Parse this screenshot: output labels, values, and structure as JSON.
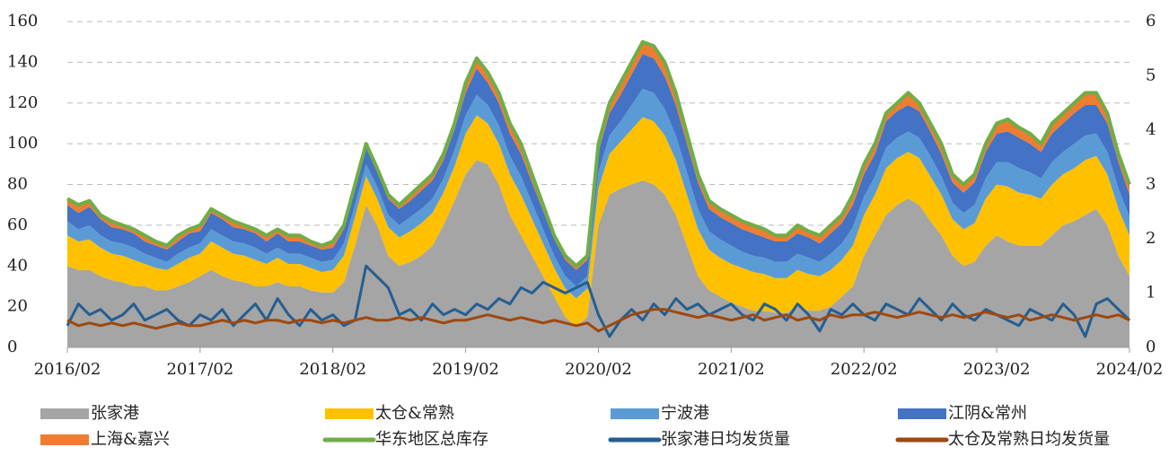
{
  "chart_data": {
    "type": "stacked-area-line",
    "x": [
      "2016/02",
      "2016/03",
      "2016/04",
      "2016/05",
      "2016/06",
      "2016/07",
      "2016/08",
      "2016/09",
      "2016/10",
      "2016/11",
      "2016/12",
      "2017/01",
      "2017/02",
      "2017/03",
      "2017/04",
      "2017/05",
      "2017/06",
      "2017/07",
      "2017/08",
      "2017/09",
      "2017/10",
      "2017/11",
      "2017/12",
      "2018/01",
      "2018/02",
      "2018/03",
      "2018/04",
      "2018/05",
      "2018/06",
      "2018/07",
      "2018/08",
      "2018/09",
      "2018/10",
      "2018/11",
      "2018/12",
      "2019/01",
      "2019/02",
      "2019/03",
      "2019/04",
      "2019/05",
      "2019/06",
      "2019/07",
      "2019/08",
      "2019/09",
      "2019/10",
      "2019/11",
      "2019/12",
      "2020/01",
      "2020/02",
      "2020/03",
      "2020/04",
      "2020/05",
      "2020/06",
      "2020/07",
      "2020/08",
      "2020/09",
      "2020/10",
      "2020/11",
      "2020/12",
      "2021/01",
      "2021/02",
      "2021/03",
      "2021/04",
      "2021/05",
      "2021/06",
      "2021/07",
      "2021/08",
      "2021/09",
      "2021/10",
      "2021/11",
      "2021/12",
      "2022/01",
      "2022/02",
      "2022/03",
      "2022/04",
      "2022/05",
      "2022/06",
      "2022/07",
      "2022/08",
      "2022/09",
      "2022/10",
      "2022/11",
      "2022/12",
      "2023/01",
      "2023/02",
      "2023/03",
      "2023/04",
      "2023/05",
      "2023/06",
      "2023/07",
      "2023/08",
      "2023/09",
      "2023/10",
      "2023/11",
      "2023/12",
      "2024/01",
      "2024/02"
    ],
    "series": [
      {
        "name": "张家港",
        "kind": "area",
        "color": "#a5a5a5",
        "values": [
          40,
          38,
          38,
          35,
          33,
          32,
          30,
          30,
          28,
          28,
          30,
          32,
          35,
          38,
          35,
          33,
          32,
          30,
          30,
          32,
          30,
          30,
          28,
          27,
          27,
          32,
          50,
          70,
          60,
          45,
          40,
          42,
          45,
          50,
          60,
          72,
          85,
          92,
          90,
          80,
          65,
          55,
          45,
          35,
          25,
          15,
          10,
          15,
          60,
          75,
          78,
          80,
          82,
          80,
          75,
          65,
          50,
          35,
          28,
          25,
          22,
          20,
          18,
          18,
          17,
          17,
          20,
          18,
          18,
          20,
          25,
          30,
          45,
          55,
          65,
          70,
          73,
          70,
          62,
          55,
          45,
          40,
          42,
          50,
          55,
          52,
          50,
          50,
          50,
          55,
          60,
          62,
          65,
          68,
          60,
          45,
          35
        ]
      },
      {
        "name": "太仓&常熟",
        "kind": "area",
        "color": "#ffc000",
        "values": [
          15,
          14,
          15,
          14,
          13,
          13,
          13,
          11,
          11,
          10,
          11,
          12,
          11,
          14,
          14,
          13,
          13,
          13,
          11,
          12,
          11,
          11,
          11,
          10,
          11,
          13,
          14,
          14,
          13,
          14,
          14,
          15,
          16,
          16,
          16,
          17,
          20,
          22,
          20,
          20,
          20,
          20,
          18,
          16,
          14,
          14,
          14,
          14,
          18,
          20,
          23,
          27,
          31,
          31,
          29,
          27,
          25,
          23,
          20,
          19,
          19,
          19,
          19,
          18,
          17,
          17,
          18,
          18,
          17,
          18,
          18,
          20,
          20,
          20,
          23,
          23,
          23,
          23,
          22,
          20,
          18,
          18,
          19,
          23,
          25,
          27,
          26,
          25,
          23,
          25,
          25,
          26,
          27,
          26,
          25,
          23,
          20
        ]
      },
      {
        "name": "宁波港",
        "kind": "area",
        "color": "#5b9bd5",
        "values": [
          7,
          6,
          7,
          6,
          6,
          6,
          6,
          5,
          5,
          4,
          5,
          5,
          5,
          6,
          6,
          6,
          6,
          6,
          5,
          5,
          5,
          5,
          5,
          5,
          5,
          6,
          6,
          6,
          6,
          6,
          6,
          7,
          7,
          7,
          7,
          8,
          9,
          10,
          9,
          9,
          9,
          9,
          8,
          7,
          6,
          6,
          6,
          6,
          8,
          9,
          10,
          12,
          14,
          14,
          13,
          12,
          11,
          10,
          9,
          9,
          9,
          8,
          8,
          8,
          8,
          8,
          8,
          8,
          7,
          8,
          8,
          9,
          9,
          9,
          10,
          10,
          10,
          10,
          10,
          9,
          8,
          8,
          9,
          10,
          11,
          12,
          12,
          11,
          10,
          11,
          11,
          12,
          12,
          11,
          11,
          10,
          9
        ]
      },
      {
        "name": "江阴&常州",
        "kind": "area",
        "color": "#4472c4",
        "values": [
          8,
          8,
          9,
          8,
          7,
          7,
          7,
          6,
          6,
          6,
          6,
          7,
          6,
          8,
          8,
          7,
          7,
          7,
          6,
          7,
          6,
          6,
          6,
          6,
          6,
          7,
          8,
          8,
          7,
          8,
          8,
          8,
          9,
          9,
          9,
          10,
          11,
          13,
          11,
          11,
          11,
          11,
          10,
          9,
          8,
          8,
          8,
          8,
          10,
          11,
          13,
          15,
          17,
          17,
          16,
          15,
          14,
          13,
          11,
          11,
          11,
          11,
          11,
          10,
          10,
          10,
          10,
          10,
          9,
          10,
          10,
          11,
          11,
          11,
          13,
          13,
          13,
          13,
          12,
          11,
          10,
          10,
          11,
          13,
          14,
          15,
          15,
          14,
          13,
          14,
          14,
          15,
          15,
          14,
          14,
          13,
          11
        ]
      },
      {
        "name": "上海&嘉兴",
        "kind": "area",
        "color": "#ed7d31",
        "values": [
          3,
          4,
          3,
          2,
          3,
          2,
          2,
          3,
          2,
          2,
          3,
          2,
          3,
          2,
          2,
          3,
          2,
          2,
          3,
          2,
          3,
          3,
          2,
          2,
          3,
          2,
          2,
          2,
          2,
          2,
          2,
          3,
          3,
          3,
          3,
          3,
          5,
          5,
          5,
          5,
          5,
          5,
          4,
          3,
          2,
          2,
          2,
          2,
          4,
          5,
          6,
          6,
          6,
          6,
          7,
          6,
          5,
          4,
          4,
          4,
          4,
          4,
          4,
          4,
          3,
          3,
          4,
          3,
          4,
          4,
          4,
          5,
          5,
          5,
          4,
          4,
          6,
          4,
          4,
          5,
          4,
          4,
          4,
          4,
          5,
          6,
          5,
          5,
          4,
          5,
          5,
          5,
          6,
          6,
          5,
          4,
          5
        ]
      },
      {
        "name": "华东地区总库存",
        "kind": "line",
        "color": "#70ad47",
        "values": [
          73,
          70,
          72,
          65,
          62,
          60,
          58,
          55,
          52,
          50,
          55,
          58,
          60,
          68,
          65,
          62,
          60,
          58,
          55,
          58,
          55,
          55,
          52,
          50,
          52,
          60,
          80,
          100,
          88,
          75,
          70,
          75,
          80,
          85,
          95,
          110,
          130,
          142,
          135,
          125,
          110,
          100,
          85,
          70,
          55,
          45,
          40,
          45,
          100,
          120,
          130,
          140,
          150,
          148,
          140,
          125,
          105,
          85,
          72,
          68,
          65,
          62,
          60,
          58,
          55,
          55,
          60,
          57,
          55,
          60,
          65,
          75,
          90,
          100,
          115,
          120,
          125,
          120,
          110,
          100,
          85,
          80,
          85,
          100,
          110,
          112,
          108,
          105,
          100,
          110,
          115,
          120,
          125,
          125,
          115,
          95,
          80
        ]
      },
      {
        "name": "张家港日均发货量",
        "kind": "line",
        "axis": "y2",
        "color": "#255e91",
        "values": [
          0.4,
          0.8,
          0.6,
          0.7,
          0.5,
          0.6,
          0.8,
          0.5,
          0.6,
          0.7,
          0.5,
          0.4,
          0.6,
          0.5,
          0.7,
          0.4,
          0.6,
          0.8,
          0.5,
          0.9,
          0.6,
          0.4,
          0.7,
          0.5,
          0.6,
          0.4,
          0.5,
          1.5,
          1.3,
          1.1,
          0.6,
          0.7,
          0.5,
          0.8,
          0.6,
          0.7,
          0.6,
          0.8,
          0.7,
          0.9,
          0.8,
          1.1,
          1.0,
          1.2,
          1.1,
          1.0,
          1.1,
          1.2,
          0.6,
          0.2,
          0.5,
          0.7,
          0.5,
          0.8,
          0.6,
          0.9,
          0.7,
          0.8,
          0.6,
          0.7,
          0.8,
          0.6,
          0.5,
          0.8,
          0.7,
          0.5,
          0.8,
          0.6,
          0.3,
          0.7,
          0.6,
          0.8,
          0.6,
          0.5,
          0.8,
          0.7,
          0.6,
          0.9,
          0.7,
          0.5,
          0.8,
          0.6,
          0.5,
          0.7,
          0.6,
          0.5,
          0.4,
          0.7,
          0.6,
          0.5,
          0.8,
          0.6,
          0.2,
          0.8,
          0.9,
          0.7,
          0.5
        ]
      },
      {
        "name": "太仓及常熟日均发货量",
        "kind": "line",
        "axis": "y2",
        "color": "#9e480e",
        "values": [
          0.5,
          0.4,
          0.45,
          0.4,
          0.45,
          0.4,
          0.45,
          0.4,
          0.35,
          0.4,
          0.45,
          0.4,
          0.4,
          0.45,
          0.5,
          0.45,
          0.5,
          0.45,
          0.5,
          0.5,
          0.45,
          0.5,
          0.5,
          0.45,
          0.5,
          0.45,
          0.5,
          0.55,
          0.5,
          0.5,
          0.55,
          0.5,
          0.55,
          0.5,
          0.45,
          0.5,
          0.5,
          0.55,
          0.6,
          0.55,
          0.5,
          0.55,
          0.5,
          0.45,
          0.5,
          0.45,
          0.4,
          0.45,
          0.3,
          0.4,
          0.5,
          0.6,
          0.65,
          0.7,
          0.7,
          0.65,
          0.6,
          0.55,
          0.6,
          0.55,
          0.5,
          0.55,
          0.6,
          0.5,
          0.55,
          0.6,
          0.5,
          0.55,
          0.5,
          0.6,
          0.55,
          0.6,
          0.6,
          0.65,
          0.6,
          0.55,
          0.6,
          0.65,
          0.6,
          0.55,
          0.6,
          0.55,
          0.6,
          0.65,
          0.6,
          0.55,
          0.6,
          0.5,
          0.55,
          0.6,
          0.55,
          0.5,
          0.55,
          0.6,
          0.55,
          0.6,
          0.5
        ]
      }
    ],
    "ylim": [
      0,
      160
    ],
    "yticks": [
      0,
      20,
      40,
      60,
      80,
      100,
      120,
      140,
      160
    ],
    "y2lim": [
      0,
      6
    ],
    "y2ticks": [
      0,
      1,
      2,
      3,
      4,
      5,
      6
    ],
    "grid": true,
    "legend": "bottom"
  }
}
